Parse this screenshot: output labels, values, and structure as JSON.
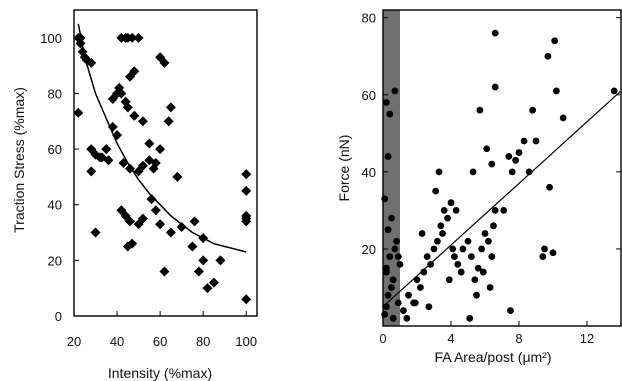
{
  "chart_data": [
    {
      "type": "scatter",
      "xlabel": "Intensity (%max)",
      "ylabel": "Traction Stress (%max)",
      "xlim": [
        20,
        105
      ],
      "ylim": [
        0,
        110
      ],
      "x_ticks": [
        "20",
        "40",
        "60",
        "80",
        "100"
      ],
      "y_ticks": [
        "0",
        "20",
        "40",
        "60",
        "80",
        "100"
      ],
      "marker": "diamond",
      "grid": false,
      "series": [
        {
          "x": [
            22,
            23,
            24,
            25,
            26,
            28,
            42,
            44,
            45,
            47,
            50,
            22,
            28,
            32,
            36,
            38,
            40,
            41,
            44,
            46,
            48,
            43,
            46,
            50,
            52,
            55,
            57,
            60,
            62,
            65,
            23,
            28,
            30,
            33,
            35,
            38,
            40,
            42,
            45,
            48,
            52,
            55,
            58,
            60,
            64,
            68,
            42,
            44,
            46,
            50,
            52,
            56,
            60,
            65,
            70,
            75,
            80,
            30,
            45,
            47,
            58,
            62,
            78,
            82,
            85,
            88,
            76,
            80,
            100,
            100,
            100,
            100,
            100,
            100
          ],
          "y": [
            100,
            98,
            95,
            93,
            92,
            91,
            100,
            100,
            100,
            100,
            100,
            73,
            52,
            57,
            56,
            78,
            80,
            82,
            77,
            86,
            88,
            55,
            53,
            52,
            54,
            56,
            53,
            93,
            91,
            75,
            100,
            60,
            58,
            57,
            60,
            68,
            65,
            80,
            75,
            72,
            70,
            62,
            55,
            60,
            70,
            50,
            38,
            36,
            34,
            33,
            35,
            42,
            33,
            30,
            32,
            25,
            20,
            30,
            25,
            26,
            38,
            16,
            16,
            10,
            12,
            20,
            34,
            28,
            51,
            45,
            36,
            34,
            35,
            6
          ]
        }
      ],
      "fit_curve": {
        "x": [
          22,
          25,
          30,
          35,
          40,
          45,
          50,
          55,
          60,
          65,
          70,
          75,
          80,
          85,
          90,
          95,
          100
        ],
        "y": [
          105,
          93,
          80,
          71,
          62,
          55,
          49,
          44,
          40,
          36,
          33,
          30,
          28,
          26,
          25,
          24,
          23
        ]
      }
    },
    {
      "type": "scatter",
      "xlabel": "FA  Area/post (μm²)",
      "ylabel": "Force (nN)",
      "xlim": [
        0,
        14
      ],
      "ylim": [
        0,
        82
      ],
      "x_ticks": [
        "0",
        "4",
        "8",
        "12"
      ],
      "y_ticks": [
        "20",
        "40",
        "60",
        "80"
      ],
      "marker": "circle",
      "grid": false,
      "shaded_band": [
        0,
        1
      ],
      "series": [
        {
          "x": [
            0.1,
            0.2,
            0.3,
            0.5,
            0.6,
            0.2,
            0.4,
            0.7,
            0.8,
            0.3,
            0.5,
            0.9,
            0.1,
            0.6,
            0.4,
            0.2,
            0.7,
            0.3,
            1.2,
            1.5,
            1.8,
            2.0,
            2.2,
            2.4,
            2.6,
            2.8,
            3.0,
            3.2,
            3.4,
            3.5,
            3.6,
            3.8,
            4.0,
            4.1,
            4.2,
            4.4,
            4.6,
            1.4,
            1.9,
            2.3,
            2.7,
            3.1,
            3.3,
            3.9,
            4.3,
            4.7,
            5.0,
            5.2,
            5.4,
            5.6,
            5.8,
            6.0,
            6.2,
            6.4,
            6.5,
            5.1,
            5.5,
            5.9,
            6.3,
            6.6,
            5.3,
            5.7,
            6.1,
            6.4,
            6.6,
            7.1,
            7.4,
            7.6,
            7.8,
            8.0,
            8.3,
            8.6,
            8.8,
            9.0,
            9.5,
            9.8,
            10.0,
            10.2,
            10.6,
            9.4,
            9.7,
            10.1,
            7.5,
            6.6,
            13.6,
            1.0,
            0.9,
            0.2
          ],
          "y": [
            3,
            5,
            8,
            10,
            12,
            15,
            18,
            20,
            22,
            25,
            28,
            6,
            33,
            2,
            55,
            58,
            61,
            44,
            4,
            8,
            6,
            12,
            10,
            14,
            18,
            16,
            20,
            22,
            26,
            24,
            30,
            28,
            32,
            20,
            18,
            16,
            14,
            2,
            6,
            24,
            5,
            35,
            40,
            12,
            30,
            20,
            22,
            18,
            12,
            15,
            20,
            24,
            22,
            18,
            26,
            2,
            8,
            14,
            10,
            30,
            40,
            56,
            46,
            42,
            76,
            30,
            44,
            40,
            43,
            45,
            48,
            40,
            56,
            48,
            20,
            36,
            19,
            61,
            54,
            18,
            70,
            74,
            4,
            62,
            61,
            16,
            18,
            14
          ]
        }
      ],
      "fit_line": {
        "x": [
          0,
          14
        ],
        "y": [
          5,
          61
        ]
      }
    }
  ]
}
